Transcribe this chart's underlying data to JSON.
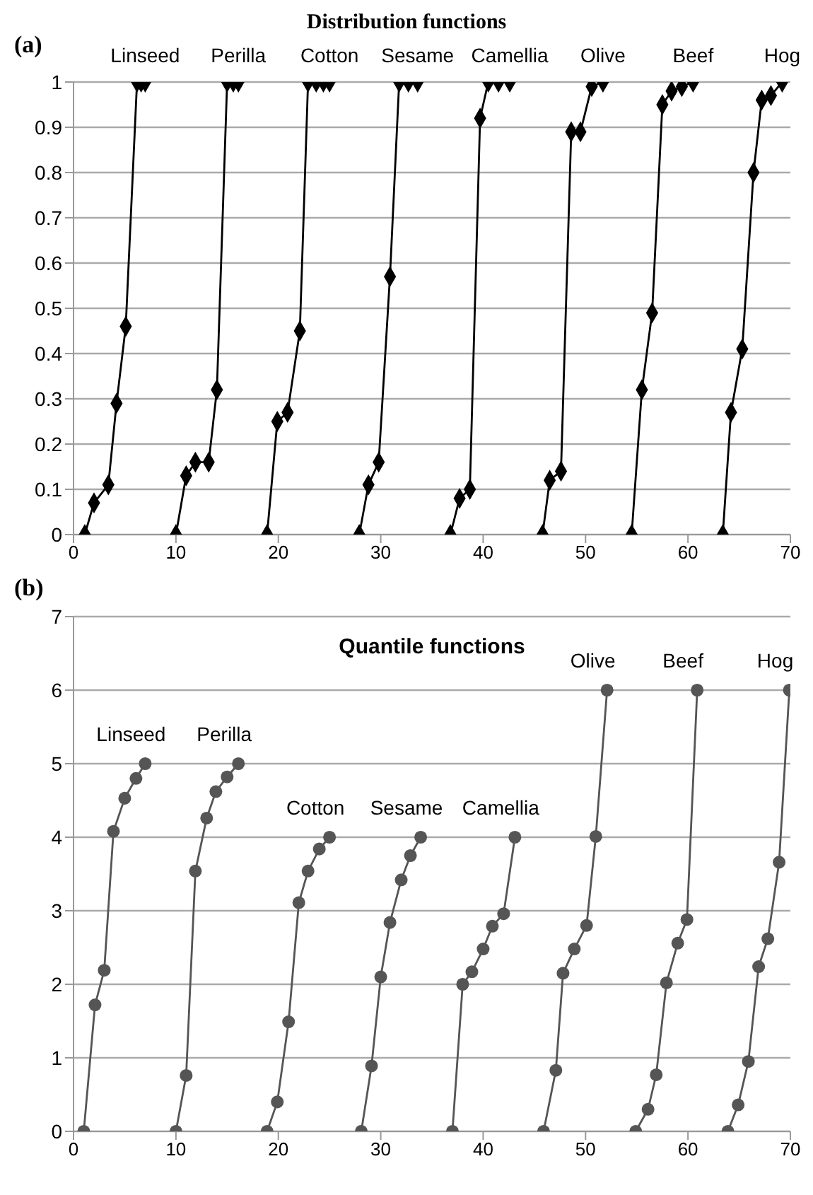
{
  "chart_data": [
    {
      "type": "line",
      "title": "Distribution functions",
      "annotations": [
        "(a)"
      ],
      "marker": "diamond",
      "grid": "y",
      "legend": false,
      "line_style": "solid",
      "xlim": [
        0,
        70
      ],
      "xticks": [
        0,
        10,
        20,
        30,
        40,
        50,
        60,
        70
      ],
      "ylim": [
        0,
        1
      ],
      "yticks": [
        0,
        0.1,
        0.2,
        0.3,
        0.4,
        0.5,
        0.6,
        0.7,
        0.8,
        0.9,
        1
      ],
      "series": [
        {
          "name": "Linseed",
          "color": "#000000",
          "x": [
            1.1,
            2.0,
            3.4,
            4.2,
            5.1,
            6.2,
            6.6,
            7.0
          ],
          "values": [
            0,
            0.07,
            0.11,
            0.29,
            0.46,
            1,
            1,
            1
          ]
        },
        {
          "name": "Perilla",
          "color": "#000000",
          "x": [
            10.0,
            11.0,
            11.9,
            13.2,
            14.0,
            15.0,
            15.6,
            16.1
          ],
          "values": [
            0,
            0.13,
            0.16,
            0.16,
            0.32,
            1,
            1,
            1
          ]
        },
        {
          "name": "Cotton",
          "color": "#000000",
          "x": [
            18.9,
            19.9,
            20.9,
            22.1,
            22.9,
            23.7,
            24.4,
            25.0
          ],
          "values": [
            0,
            0.25,
            0.27,
            0.45,
            1,
            1,
            1,
            1
          ]
        },
        {
          "name": "Sesame",
          "color": "#000000",
          "x": [
            27.9,
            28.8,
            29.8,
            30.9,
            31.8,
            32.7,
            33.6
          ],
          "values": [
            0,
            0.11,
            0.16,
            0.57,
            1,
            1,
            1
          ]
        },
        {
          "name": "Camellia",
          "color": "#000000",
          "x": [
            36.8,
            37.7,
            38.7,
            39.7,
            40.5,
            41.5,
            42.6
          ],
          "values": [
            0,
            0.08,
            0.1,
            0.92,
            1,
            1,
            1
          ]
        },
        {
          "name": "Olive",
          "color": "#000000",
          "x": [
            45.8,
            46.5,
            47.6,
            48.6,
            49.5,
            50.6,
            51.7
          ],
          "values": [
            0,
            0.12,
            0.14,
            0.89,
            0.89,
            0.99,
            1
          ]
        },
        {
          "name": "Beef",
          "color": "#000000",
          "x": [
            54.5,
            55.5,
            56.5,
            57.5,
            58.4,
            59.4,
            60.5
          ],
          "values": [
            0,
            0.32,
            0.49,
            0.95,
            0.98,
            0.99,
            1
          ]
        },
        {
          "name": "Hog",
          "color": "#000000",
          "x": [
            63.4,
            64.2,
            65.3,
            66.4,
            67.2,
            68.1,
            69.2
          ],
          "values": [
            0,
            0.27,
            0.41,
            0.8,
            0.96,
            0.97,
            1
          ]
        }
      ]
    },
    {
      "type": "line",
      "title": "Quantile functions",
      "annotations": [
        "(b)"
      ],
      "marker": "circle",
      "grid": "y",
      "legend": false,
      "line_style": "solid",
      "xlim": [
        0,
        70
      ],
      "xticks": [
        0,
        10,
        20,
        30,
        40,
        50,
        60,
        70
      ],
      "ylim": [
        0,
        7
      ],
      "yticks": [
        0,
        1,
        2,
        3,
        4,
        5,
        6,
        7
      ],
      "series": [
        {
          "name": "Linseed",
          "color": "#555555",
          "x": [
            1.0,
            2.1,
            3.0,
            3.9,
            5.0,
            6.1,
            7.0
          ],
          "values": [
            0,
            1.72,
            2.19,
            4.08,
            4.53,
            4.8,
            5
          ]
        },
        {
          "name": "Perilla",
          "color": "#555555",
          "x": [
            10.0,
            11.0,
            11.9,
            13.0,
            13.9,
            15.0,
            16.1
          ],
          "values": [
            0,
            0.76,
            3.54,
            4.26,
            4.62,
            4.82,
            5
          ]
        },
        {
          "name": "Cotton",
          "color": "#555555",
          "x": [
            18.9,
            19.9,
            21.0,
            22.0,
            22.9,
            24.0,
            25.0
          ],
          "values": [
            0,
            0.4,
            1.49,
            3.11,
            3.54,
            3.84,
            4
          ]
        },
        {
          "name": "Sesame",
          "color": "#555555",
          "x": [
            28.1,
            29.1,
            30.0,
            30.9,
            32.0,
            32.9,
            33.9
          ],
          "values": [
            0,
            0.89,
            2.1,
            2.84,
            3.42,
            3.75,
            4
          ]
        },
        {
          "name": "Camellia",
          "color": "#555555",
          "x": [
            37.0,
            38.0,
            38.9,
            40.0,
            40.9,
            42.0,
            43.1
          ],
          "values": [
            0,
            2.0,
            2.17,
            2.48,
            2.79,
            2.96,
            4
          ]
        },
        {
          "name": "Olive",
          "color": "#555555",
          "x": [
            45.9,
            47.1,
            47.8,
            48.9,
            50.1,
            51.0,
            52.1
          ],
          "values": [
            0,
            0.83,
            2.15,
            2.48,
            2.8,
            4.01,
            6
          ]
        },
        {
          "name": "Beef",
          "color": "#555555",
          "x": [
            54.9,
            56.1,
            56.9,
            57.9,
            59.0,
            59.9,
            60.9
          ],
          "values": [
            0,
            0.3,
            0.77,
            2.02,
            2.56,
            2.88,
            6
          ]
        },
        {
          "name": "Hog",
          "color": "#555555",
          "x": [
            63.9,
            64.9,
            65.9,
            66.9,
            67.8,
            68.9,
            69.9
          ],
          "values": [
            0,
            0.36,
            0.95,
            2.24,
            2.62,
            3.66,
            6
          ]
        }
      ]
    }
  ]
}
